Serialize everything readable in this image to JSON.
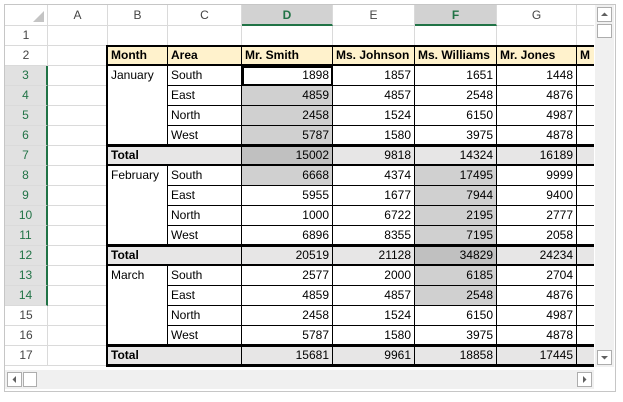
{
  "column_headers": [
    "A",
    "B",
    "C",
    "D",
    "E",
    "F",
    "G"
  ],
  "row_headers": [
    1,
    2,
    3,
    4,
    5,
    6,
    7,
    8,
    9,
    10,
    11,
    12,
    13,
    14,
    15,
    16,
    17
  ],
  "table": {
    "header": [
      "Month",
      "Area",
      "Mr. Smith",
      "Ms. Johnson",
      "Ms. Williams",
      "Mr. Jones",
      "M"
    ],
    "groups": [
      {
        "month": "January",
        "rows": [
          {
            "area": "South",
            "values": [
              1898,
              1857,
              1651,
              1448
            ]
          },
          {
            "area": "East",
            "values": [
              4859,
              4857,
              2548,
              4876
            ]
          },
          {
            "area": "North",
            "values": [
              2458,
              1524,
              6150,
              4987
            ]
          },
          {
            "area": "West",
            "values": [
              5787,
              1580,
              3975,
              4878
            ]
          }
        ],
        "total_label": "Total",
        "total": [
          15002,
          9818,
          14324,
          16189
        ]
      },
      {
        "month": "February",
        "rows": [
          {
            "area": "South",
            "values": [
              6668,
              4374,
              17495,
              9999
            ]
          },
          {
            "area": "East",
            "values": [
              5955,
              1677,
              7944,
              9400
            ]
          },
          {
            "area": "North",
            "values": [
              1000,
              6722,
              2195,
              2777
            ]
          },
          {
            "area": "West",
            "values": [
              6896,
              8355,
              7195,
              2058
            ]
          }
        ],
        "total_label": "Total",
        "total": [
          20519,
          21128,
          34829,
          24234
        ]
      },
      {
        "month": "March",
        "rows": [
          {
            "area": "South",
            "values": [
              2577,
              2000,
              6185,
              2704
            ]
          },
          {
            "area": "East",
            "values": [
              4859,
              4857,
              2548,
              4876
            ]
          },
          {
            "area": "North",
            "values": [
              2458,
              1524,
              6150,
              4987
            ]
          },
          {
            "area": "West",
            "values": [
              5787,
              1580,
              3975,
              4878
            ]
          }
        ],
        "total_label": "Total",
        "total": [
          15681,
          9961,
          18858,
          17445
        ]
      }
    ]
  }
}
